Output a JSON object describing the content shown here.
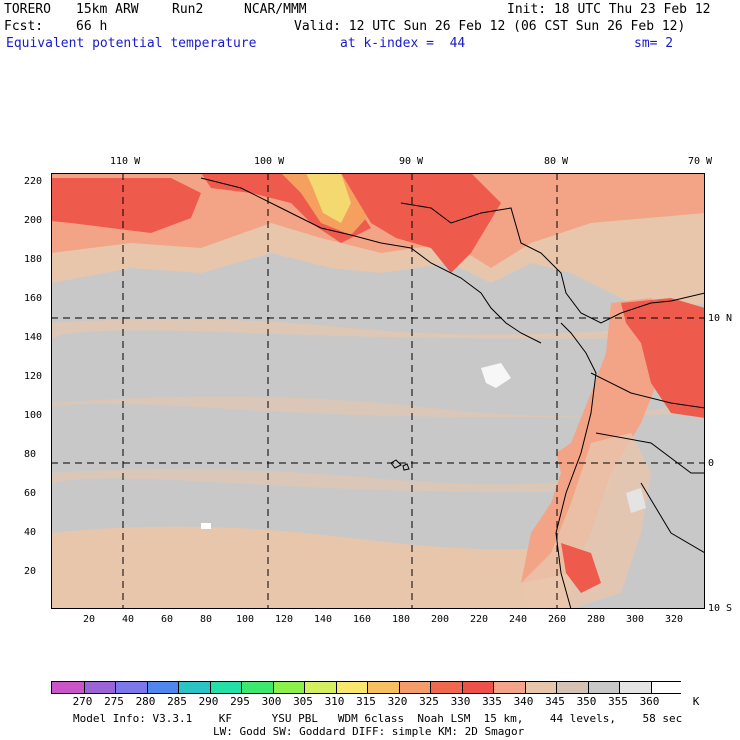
{
  "header": {
    "model": "TORERO",
    "resolution": "15km ARW",
    "run": "Run2",
    "org": "NCAR/MMM",
    "init": "Init: 18 UTC Thu 23 Feb 12",
    "fcst_label": "Fcst:",
    "fcst_value": "66 h",
    "valid": "Valid: 12 UTC Sun 26 Feb 12 (06 CST Sun 26 Feb 12)",
    "field": "Equivalent potential temperature",
    "level": "at k-index =  44",
    "smoothing": "sm= 2"
  },
  "map": {
    "lon_labels": [
      "110 W",
      "100 W",
      "90 W",
      "80 W",
      "70 W"
    ],
    "lat_labels": [
      "10 N",
      "0",
      "10 S"
    ],
    "y_ticks": [
      "220",
      "200",
      "180",
      "160",
      "140",
      "120",
      "100",
      "80",
      "60",
      "40",
      "20"
    ],
    "x_ticks": [
      "20",
      "40",
      "60",
      "80",
      "100",
      "120",
      "140",
      "160",
      "180",
      "200",
      "220",
      "240",
      "260",
      "280",
      "300",
      "320"
    ],
    "colors": {
      "base": "#c8c8c8",
      "warm": "#e8c6ac",
      "salmon": "#f3a486",
      "red": "#ee5b4c",
      "orange": "#f6a060",
      "yellow": "#f4d870",
      "white_patch": "#ffffff",
      "boundary": "#000000"
    }
  },
  "colorbar": {
    "levels": [
      "270",
      "275",
      "280",
      "285",
      "290",
      "295",
      "300",
      "305",
      "310",
      "315",
      "320",
      "325",
      "330",
      "335",
      "340",
      "345",
      "350",
      "355",
      "360"
    ],
    "unit": "K",
    "colors": [
      "#c955c9",
      "#9a63d8",
      "#7a78ea",
      "#4f87ee",
      "#2bc4c4",
      "#24e0a8",
      "#3ee86e",
      "#8cf04c",
      "#d4f060",
      "#f8e86e",
      "#f6c060",
      "#f49c6a",
      "#f0684e",
      "#ee5148",
      "#f4a48a",
      "#e8c6ac",
      "#d6c2b4",
      "#c8c8c8",
      "#e4e4e4",
      "#ffffff"
    ]
  },
  "footer": {
    "line1": "Model Info: V3.3.1    KF      YSU PBL   WDM 6class  Noah LSM  15 km,    44 levels,    58 sec",
    "line2": "LW: Godd SW: Goddard DIFF: simple KM: 2D Smagor"
  }
}
